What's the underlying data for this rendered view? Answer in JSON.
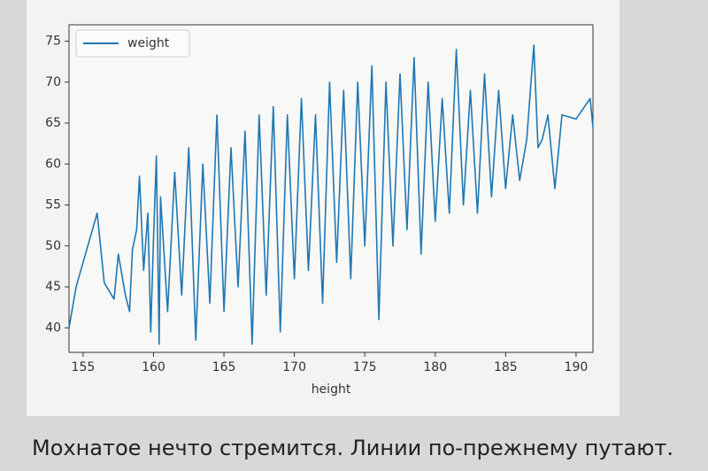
{
  "chart_data": {
    "type": "line",
    "x_label": "height",
    "legend": "upper left",
    "xlim": [
      154,
      191.2
    ],
    "xticks": [
      155,
      160,
      165,
      170,
      175,
      180,
      185,
      190
    ],
    "ylim": [
      37,
      77
    ],
    "yticks": [
      40,
      45,
      50,
      55,
      60,
      65,
      70,
      75
    ],
    "x": [
      154,
      154.5,
      155,
      156,
      156.5,
      157.2,
      157.5,
      158,
      158.3,
      158.5,
      158.8,
      159,
      159.3,
      159.6,
      159.8,
      160,
      160.2,
      160.4,
      160.5,
      161,
      161.5,
      162,
      162.5,
      163,
      163.5,
      164,
      164.5,
      165,
      165.5,
      166,
      166.5,
      167,
      167.5,
      168,
      168.5,
      169,
      169.5,
      170,
      170.5,
      171,
      171.5,
      172,
      172.5,
      173,
      173.5,
      174,
      174.5,
      175,
      175.5,
      176,
      176.5,
      177,
      177.5,
      178,
      178.5,
      179,
      179.5,
      180,
      180.5,
      181,
      181.5,
      182,
      182.5,
      183,
      183.5,
      184,
      184.5,
      185,
      185.5,
      186,
      186.5,
      186.8,
      187,
      187.3,
      187.6,
      188,
      188.5,
      189,
      190,
      191,
      191.2
    ],
    "series": [
      {
        "name": "weight",
        "color": "#1f77b4",
        "values": [
          40,
          45,
          48,
          54,
          45.5,
          43.5,
          49,
          44,
          42,
          49.5,
          52,
          58.5,
          47,
          54,
          39.5,
          51,
          61,
          38,
          56,
          42,
          59,
          44,
          62,
          38.5,
          60,
          43,
          66,
          42,
          62,
          45,
          64,
          38,
          66,
          44,
          67,
          39.5,
          66,
          46,
          68,
          47,
          66,
          43,
          70,
          48,
          69,
          46,
          70,
          50,
          72,
          41,
          70,
          50,
          71,
          52,
          73,
          49,
          70,
          53,
          68,
          54,
          74,
          55,
          69,
          54,
          71,
          56,
          69,
          57,
          66,
          58,
          63,
          70,
          74.5,
          62,
          63,
          66,
          57,
          66,
          65.5,
          68,
          64.5
        ]
      }
    ]
  },
  "caption": "Мохнатое нечто стремится. Линии по-прежнему путают."
}
